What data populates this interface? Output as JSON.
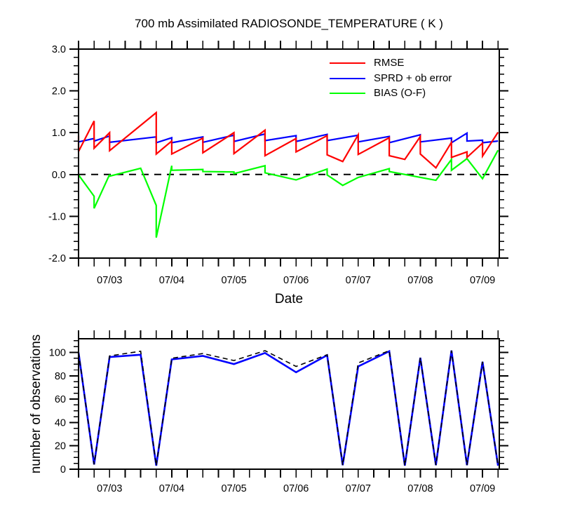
{
  "page": {
    "background_color": "#ffffff"
  },
  "chart_data": [
    {
      "type": "line",
      "panel_id": "errors",
      "title": "700 mb Assimilated RADIOSONDE_TEMPERATURE ( K )",
      "xlabel": "Date",
      "ylabel": "",
      "xlim": [
        2.5,
        9.27
      ],
      "ylim": [
        -2.0,
        3.0
      ],
      "grid": false,
      "x_minor_step": 0.25,
      "y_minor_step": 0.2,
      "x_ticks": [
        {
          "v": 3,
          "label": "07/03"
        },
        {
          "v": 4,
          "label": "07/04"
        },
        {
          "v": 5,
          "label": "07/05"
        },
        {
          "v": 6,
          "label": "07/06"
        },
        {
          "v": 7,
          "label": "07/07"
        },
        {
          "v": 8,
          "label": "07/08"
        },
        {
          "v": 9,
          "label": "07/09"
        }
      ],
      "y_ticks": [
        {
          "v": 3.0,
          "label": "3.0"
        },
        {
          "v": 2.0,
          "label": "2.0"
        },
        {
          "v": 1.0,
          "label": "1.0"
        },
        {
          "v": 0.0,
          "label": "0.0"
        },
        {
          "v": -1.0,
          "label": "-1.0"
        },
        {
          "v": -2.0,
          "label": "-2.0"
        }
      ],
      "zero_line": {
        "v": 0.0,
        "style": "dashed",
        "color": "#000000"
      },
      "legend": {
        "position": "upper-right",
        "entries": [
          {
            "label": "RMSE",
            "color": "#ff0000"
          },
          {
            "label": "SPRD + ob error",
            "color": "#0000ff"
          },
          {
            "label": "BIAS (O-F)",
            "color": "#00ff00"
          }
        ]
      },
      "series": [
        {
          "name": "BIAS (O-F)",
          "color": "#00ff00",
          "points": [
            [
              2.5,
              -0.01
            ],
            [
              2.75,
              -0.52
            ],
            [
              2.75,
              -0.81
            ],
            [
              3.0,
              0.0
            ],
            [
              3.0,
              -0.04
            ],
            [
              3.5,
              0.15
            ],
            [
              3.75,
              -0.74
            ],
            [
              3.75,
              -1.51
            ],
            [
              4.0,
              0.21
            ],
            [
              4.0,
              0.1
            ],
            [
              4.5,
              0.12
            ],
            [
              4.5,
              0.07
            ],
            [
              5.0,
              0.06
            ],
            [
              5.0,
              0.02
            ],
            [
              5.5,
              0.21
            ],
            [
              5.5,
              0.04
            ],
            [
              6.0,
              -0.13
            ],
            [
              6.5,
              0.13
            ],
            [
              6.5,
              -0.01
            ],
            [
              6.75,
              -0.26
            ],
            [
              7.0,
              -0.07
            ],
            [
              7.5,
              0.14
            ],
            [
              7.5,
              0.07
            ],
            [
              8.25,
              -0.14
            ],
            [
              8.5,
              0.36
            ],
            [
              8.5,
              0.1
            ],
            [
              8.75,
              0.38
            ],
            [
              9.0,
              -0.1
            ],
            [
              9.25,
              0.58
            ]
          ]
        },
        {
          "name": "SPRD + ob error",
          "color": "#0000ff",
          "points": [
            [
              2.5,
              0.78
            ],
            [
              2.75,
              0.86
            ],
            [
              2.75,
              0.8
            ],
            [
              3.0,
              0.92
            ],
            [
              3.0,
              0.77
            ],
            [
              3.75,
              0.9
            ],
            [
              3.75,
              0.76
            ],
            [
              4.0,
              0.88
            ],
            [
              4.0,
              0.76
            ],
            [
              4.5,
              0.9
            ],
            [
              4.5,
              0.77
            ],
            [
              5.0,
              0.94
            ],
            [
              5.0,
              0.79
            ],
            [
              5.5,
              0.97
            ],
            [
              5.5,
              0.81
            ],
            [
              6.0,
              0.93
            ],
            [
              6.0,
              0.79
            ],
            [
              6.5,
              0.96
            ],
            [
              6.5,
              0.81
            ],
            [
              7.0,
              0.94
            ],
            [
              7.0,
              0.78
            ],
            [
              7.5,
              0.91
            ],
            [
              7.5,
              0.76
            ],
            [
              8.0,
              0.95
            ],
            [
              8.0,
              0.78
            ],
            [
              8.5,
              0.87
            ],
            [
              8.5,
              0.76
            ],
            [
              8.75,
              0.99
            ],
            [
              8.75,
              0.8
            ],
            [
              9.0,
              0.82
            ],
            [
              9.0,
              0.76
            ],
            [
              9.25,
              0.8
            ]
          ]
        },
        {
          "name": "RMSE",
          "color": "#ff0000",
          "points": [
            [
              2.5,
              0.93
            ],
            [
              2.5,
              0.55
            ],
            [
              2.75,
              1.28
            ],
            [
              2.75,
              0.63
            ],
            [
              3.0,
              1.0
            ],
            [
              3.0,
              0.57
            ],
            [
              3.75,
              1.48
            ],
            [
              3.75,
              0.49
            ],
            [
              4.0,
              0.8
            ],
            [
              4.0,
              0.49
            ],
            [
              4.5,
              0.87
            ],
            [
              4.5,
              0.52
            ],
            [
              5.0,
              1.0
            ],
            [
              5.0,
              0.5
            ],
            [
              5.5,
              1.06
            ],
            [
              5.5,
              0.45
            ],
            [
              6.0,
              0.86
            ],
            [
              6.0,
              0.54
            ],
            [
              6.5,
              0.93
            ],
            [
              6.5,
              0.47
            ],
            [
              6.75,
              0.31
            ],
            [
              7.0,
              0.95
            ],
            [
              7.0,
              0.48
            ],
            [
              7.5,
              0.88
            ],
            [
              7.5,
              0.45
            ],
            [
              7.75,
              0.36
            ],
            [
              8.0,
              0.91
            ],
            [
              8.0,
              0.49
            ],
            [
              8.25,
              0.16
            ],
            [
              8.5,
              0.77
            ],
            [
              8.5,
              0.41
            ],
            [
              8.75,
              0.54
            ],
            [
              8.75,
              0.41
            ],
            [
              9.0,
              0.75
            ],
            [
              9.0,
              0.44
            ],
            [
              9.25,
              1.01
            ]
          ]
        }
      ]
    },
    {
      "type": "line",
      "panel_id": "observations",
      "title": "",
      "xlabel": "",
      "ylabel": "number of observations",
      "xlim": [
        2.5,
        9.27
      ],
      "ylim": [
        0,
        111.7
      ],
      "grid": false,
      "x_minor_step": 0.25,
      "y_minor_step": 5,
      "x_ticks": [
        {
          "v": 3,
          "label": "07/03"
        },
        {
          "v": 4,
          "label": "07/04"
        },
        {
          "v": 5,
          "label": "07/05"
        },
        {
          "v": 6,
          "label": "07/06"
        },
        {
          "v": 7,
          "label": "07/07"
        },
        {
          "v": 8,
          "label": "07/08"
        },
        {
          "v": 9,
          "label": "07/09"
        }
      ],
      "y_ticks": [
        {
          "v": 0,
          "label": "0"
        },
        {
          "v": 20,
          "label": "20"
        },
        {
          "v": 40,
          "label": "40"
        },
        {
          "v": 60,
          "label": "60"
        },
        {
          "v": 80,
          "label": "80"
        },
        {
          "v": 100,
          "label": "100"
        }
      ],
      "series": [
        {
          "name": "obs-count-solid",
          "color": "#0000ff",
          "width": 2.6,
          "points": [
            [
              2.5,
              100
            ],
            [
              2.75,
              4
            ],
            [
              3.0,
              96
            ],
            [
              3.5,
              98
            ],
            [
              3.75,
              3
            ],
            [
              4.0,
              94
            ],
            [
              4.5,
              97
            ],
            [
              5.0,
              90
            ],
            [
              5.5,
              99.5
            ],
            [
              6.0,
              83
            ],
            [
              6.5,
              97.6
            ],
            [
              6.75,
              3.4
            ],
            [
              7.0,
              88
            ],
            [
              7.5,
              101
            ],
            [
              7.75,
              3
            ],
            [
              8.0,
              95.5
            ],
            [
              8.25,
              3.4
            ],
            [
              8.5,
              101.6
            ],
            [
              8.75,
              3.4
            ],
            [
              9.0,
              92
            ],
            [
              9.25,
              3
            ]
          ]
        },
        {
          "name": "obs-count-dashed",
          "color": "#000000",
          "width": 1.6,
          "dash": "7 5",
          "points": [
            [
              2.5,
              100
            ],
            [
              2.75,
              4
            ],
            [
              3.0,
              97
            ],
            [
              3.5,
              101
            ],
            [
              3.75,
              3
            ],
            [
              4.0,
              95
            ],
            [
              4.5,
              99
            ],
            [
              5.0,
              93
            ],
            [
              5.5,
              101.5
            ],
            [
              6.0,
              88
            ],
            [
              6.5,
              98
            ],
            [
              6.75,
              3.4
            ],
            [
              7.0,
              91
            ],
            [
              7.5,
              101.5
            ],
            [
              7.75,
              3
            ],
            [
              8.0,
              95.5
            ],
            [
              8.25,
              3.4
            ],
            [
              8.5,
              101.6
            ],
            [
              8.75,
              3.4
            ],
            [
              9.0,
              92
            ],
            [
              9.25,
              3
            ]
          ]
        }
      ]
    }
  ]
}
